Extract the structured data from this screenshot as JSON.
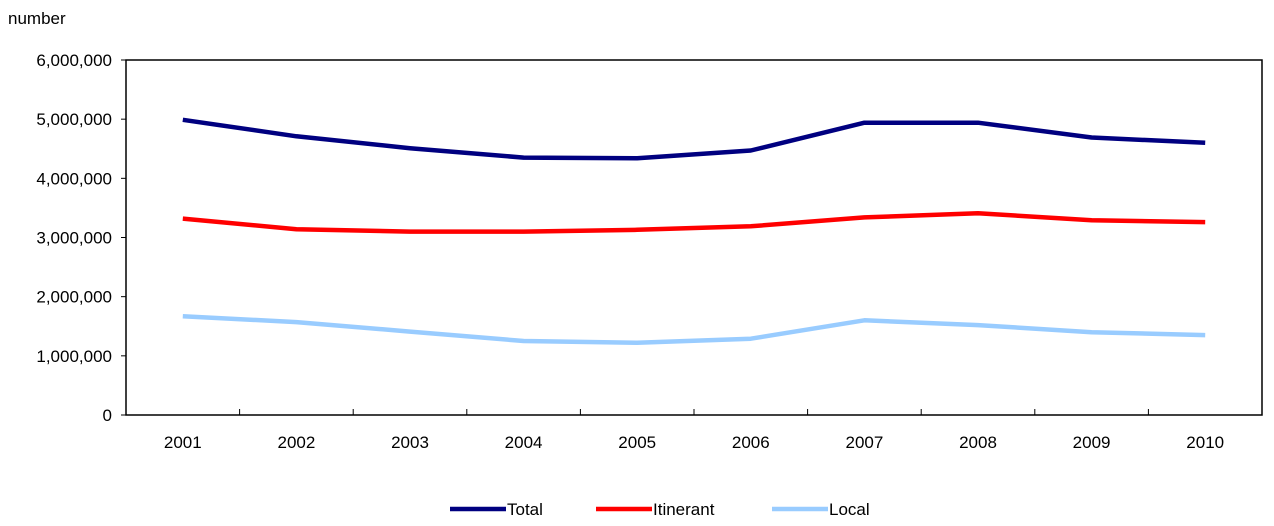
{
  "chart_data": {
    "type": "line",
    "title": "",
    "xlabel": "",
    "ylabel": "number",
    "ylim": [
      0,
      6000000
    ],
    "yticks": [
      0,
      1000000,
      2000000,
      3000000,
      4000000,
      5000000,
      6000000
    ],
    "ytick_labels": [
      "0",
      "1,000,000",
      "2,000,000",
      "3,000,000",
      "4,000,000",
      "5,000,000",
      "6,000,000"
    ],
    "categories": [
      "2001",
      "2002",
      "2003",
      "2004",
      "2005",
      "2006",
      "2007",
      "2008",
      "2009",
      "2010"
    ],
    "grid": false,
    "legend_position": "bottom-center",
    "series": [
      {
        "name": "Total",
        "color": "#000080",
        "values": [
          4990000,
          4710000,
          4510000,
          4350000,
          4340000,
          4470000,
          4940000,
          4940000,
          4690000,
          4600000
        ]
      },
      {
        "name": "Itinerant",
        "color": "#FF0000",
        "values": [
          3320000,
          3140000,
          3100000,
          3100000,
          3130000,
          3190000,
          3340000,
          3410000,
          3290000,
          3260000
        ]
      },
      {
        "name": "Local",
        "color": "#99CCFF",
        "values": [
          1670000,
          1570000,
          1410000,
          1250000,
          1220000,
          1290000,
          1600000,
          1520000,
          1400000,
          1350000
        ]
      }
    ]
  }
}
